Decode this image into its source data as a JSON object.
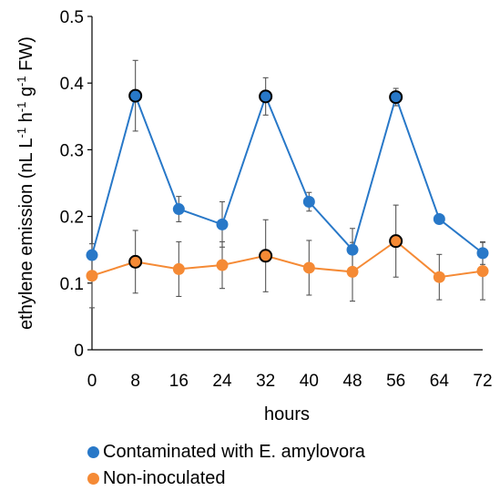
{
  "chart_data": {
    "type": "line",
    "title": "",
    "xlabel": "hours",
    "ylabel": "ethylene emission (nL L-1 h-1 g-1 FW)",
    "ylabel_parts": [
      "ethylene emission (nL L",
      "-1",
      " h",
      "-1",
      " g",
      "-1",
      " FW)"
    ],
    "x": [
      0,
      8,
      16,
      24,
      32,
      40,
      48,
      56,
      64,
      72
    ],
    "x_tick_labels": [
      "0",
      "8",
      "16",
      "24",
      "32",
      "40",
      "48",
      "56",
      "64",
      "72"
    ],
    "y_tick_labels": [
      "0",
      "0.1",
      "0.2",
      "0.3",
      "0.4",
      "0.5"
    ],
    "ylim": [
      0,
      0.5
    ],
    "grid": false,
    "legend_position": "bottom",
    "series": [
      {
        "name": "Contaminated with E. amylovora",
        "color": "#2878c8",
        "values": [
          0.142,
          0.381,
          0.211,
          0.188,
          0.38,
          0.222,
          0.15,
          0.379,
          0.196,
          0.145
        ],
        "errors": [
          0.0,
          0.053,
          0.019,
          0.034,
          0.028,
          0.014,
          0.032,
          0.013,
          0.006,
          0.017
        ],
        "highlighted_x": [
          8,
          32,
          56
        ]
      },
      {
        "name": "Non-inoculated",
        "color": "#f58a35",
        "values": [
          0.111,
          0.132,
          0.121,
          0.127,
          0.141,
          0.123,
          0.117,
          0.163,
          0.109,
          0.118
        ],
        "errors": [
          0.048,
          0.047,
          0.041,
          0.035,
          0.054,
          0.041,
          0.044,
          0.054,
          0.034,
          0.043
        ],
        "highlighted_x": [
          8,
          32,
          56
        ]
      }
    ]
  }
}
